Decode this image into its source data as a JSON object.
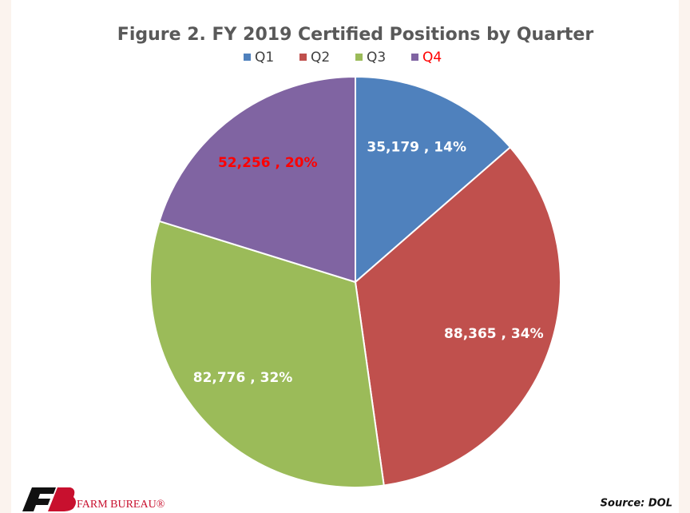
{
  "chart_data": {
    "type": "pie",
    "title": "Figure 2. FY 2019 Certified Positions by Quarter",
    "categories": [
      "Q1",
      "Q2",
      "Q3",
      "Q4"
    ],
    "values": [
      35179,
      88365,
      82776,
      52256
    ],
    "value_labels": [
      "35,179 , 14%",
      "88,365 , 34%",
      "82,776 , 32%",
      "52,256 , 20%"
    ],
    "colors": [
      "#4f81bd",
      "#c0504d",
      "#9bbb59",
      "#8064a2"
    ],
    "label_colors": [
      "#ffffff",
      "#ffffff",
      "#ffffff",
      "#ff0000"
    ],
    "legend_label_colors": [
      "#404040",
      "#404040",
      "#404040",
      "#ff0000"
    ],
    "legend": "top"
  },
  "logo": "FARM BUREAU®",
  "source": "Source: DOL"
}
